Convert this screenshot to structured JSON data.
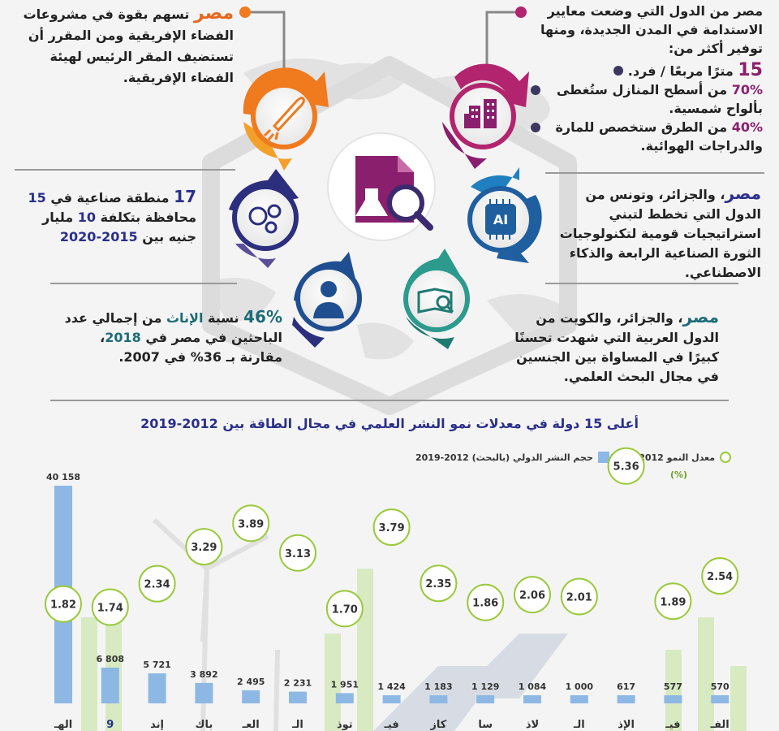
{
  "top_left": {
    "highlight": "مصر",
    "text": "تسهم بقوة في مشروعات الفضاء الإفريقية ومن المقرر أن تستضيف المقر الرئيس لهيئة الفضاء الإفريقية."
  },
  "top_right": {
    "intro": "مصر من الدول التي وضعت معايير الاستدامة في المدن الجديدة، ومنها توفير أكثر من:",
    "items": [
      {
        "num": "15",
        "text": "مترًا مربعًا / فرد."
      },
      {
        "num": "70%",
        "text": "من أسطح المنازل ستُغطى بألواح شمسية."
      },
      {
        "num": "40%",
        "text": "من الطرق ستخصص للمارة والدراجات الهوائية."
      }
    ]
  },
  "mid_left": {
    "num1": "17",
    "text1": "منطقة صناعية في",
    "num2": "15",
    "text2": "محافظة بتكلفة",
    "num3": "10",
    "text3": "مليار جنيه بين",
    "period": "2015-2020"
  },
  "mid_right": {
    "highlight": "مصر",
    "text": "، والجزائر، وتونس من الدول التي تخطط لتبني استراتيجيات قومية لتكنولوجيات الثورة الصناعية الرابعة والذكاء الاصطناعي."
  },
  "bottom_left": {
    "num": "46%",
    "text1": "نسبة",
    "word": "الإناث",
    "text2": "من إجمالي عدد الباحثين في مصر في",
    "year": "2018",
    "text3": "، مقارنة بـ 36% في 2007."
  },
  "bottom_right": {
    "highlight": "مصر",
    "text": "، والجزائر، والكويت من الدول العربية التي شهدت تحسنًا كبيرًا في المساواة بين الجنسين في مجال البحث العلمي."
  },
  "icons": {
    "rocket": "rocket-icon",
    "building": "smart-building-icon",
    "center": "science-document-icon",
    "gears": "brain-gears-icon",
    "ai": "ai-chip-icon",
    "person": "researcher-icon",
    "book": "book-search-icon",
    "ai_label": "AI"
  },
  "colors": {
    "orange": "#f07a1e",
    "magenta": "#b2246e",
    "purple": "#6b2b7e",
    "navy": "#2b2f7d",
    "blue": "#1f5fa0",
    "teal": "#2c9a8c",
    "bar": "#8db8e4",
    "circle_border": "#9ac93c"
  },
  "chart_data": {
    "type": "bar",
    "title": "أعلى 15 دولة في معدلات نمو النشر العلمي في مجال الطاقة بين 2012-2019",
    "legend_bar": "حجم النشر الدولي (بالبحث) 2012-2019",
    "legend_circle": "معدل النمو 2012-2019",
    "circle_unit": "(%)",
    "categories": [
      "الهـ",
      "9",
      "إند",
      "باك",
      "العـ",
      "الـ",
      "توذ",
      "فيـ",
      "كاز",
      "سا",
      "لاذ",
      "الـ",
      "الإذ",
      "فيـ",
      "الفـ"
    ],
    "series": [
      {
        "values": [
          40158,
          6808,
          5721,
          3892,
          2495,
          2231,
          1951,
          1424,
          1183,
          1129,
          1084,
          1000,
          617,
          577,
          570
        ],
        "labels": [
          "40 158",
          "6 808",
          "5 721",
          "3 892",
          "2 495",
          "2 231",
          "1 951",
          "1 424",
          "1 183",
          "1 129",
          "1 084",
          "1 000",
          "617",
          "577",
          "570"
        ]
      },
      {
        "values": [
          1.82,
          1.74,
          2.34,
          3.29,
          3.89,
          3.13,
          1.7,
          3.79,
          2.35,
          1.86,
          2.06,
          2.01,
          5.36,
          1.89,
          2.54
        ],
        "labels": [
          "1.82",
          "1.74",
          "2.34",
          "3.29",
          "3.89",
          "3.13",
          "1.70",
          "3.79",
          "2.35",
          "1.86",
          "2.06",
          "2.01",
          "5.36",
          "1.89",
          "2.54"
        ]
      }
    ]
  }
}
